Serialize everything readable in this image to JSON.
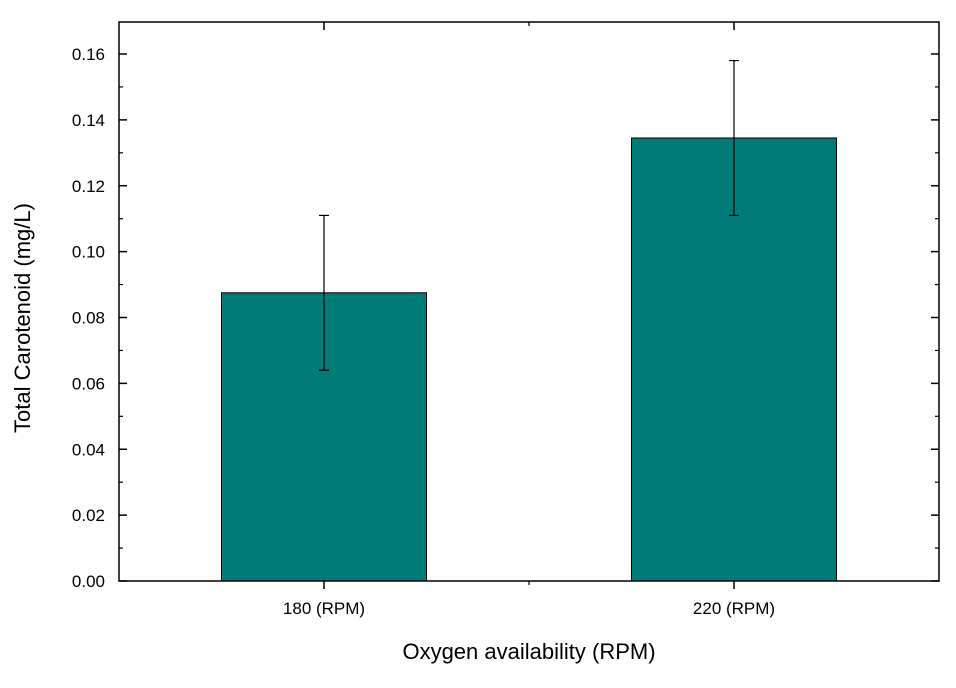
{
  "chart_data": {
    "type": "bar",
    "categories": [
      "180 (RPM)",
      "220 (RPM)"
    ],
    "values": [
      0.0875,
      0.1345
    ],
    "errors": [
      0.0235,
      0.0235
    ],
    "xlabel": "Oxygen availability (RPM)",
    "ylabel": "Total Carotenoid (mg/L)",
    "ylim": [
      0,
      0.17
    ],
    "yticks": [
      "0.00",
      "0.02",
      "0.04",
      "0.06",
      "0.08",
      "0.10",
      "0.12",
      "0.14",
      "0.16"
    ],
    "ytick_values": [
      0,
      0.02,
      0.04,
      0.06,
      0.08,
      0.1,
      0.12,
      0.14,
      0.16
    ],
    "bar_color": "#007b78",
    "grid": false,
    "legend": "none"
  }
}
